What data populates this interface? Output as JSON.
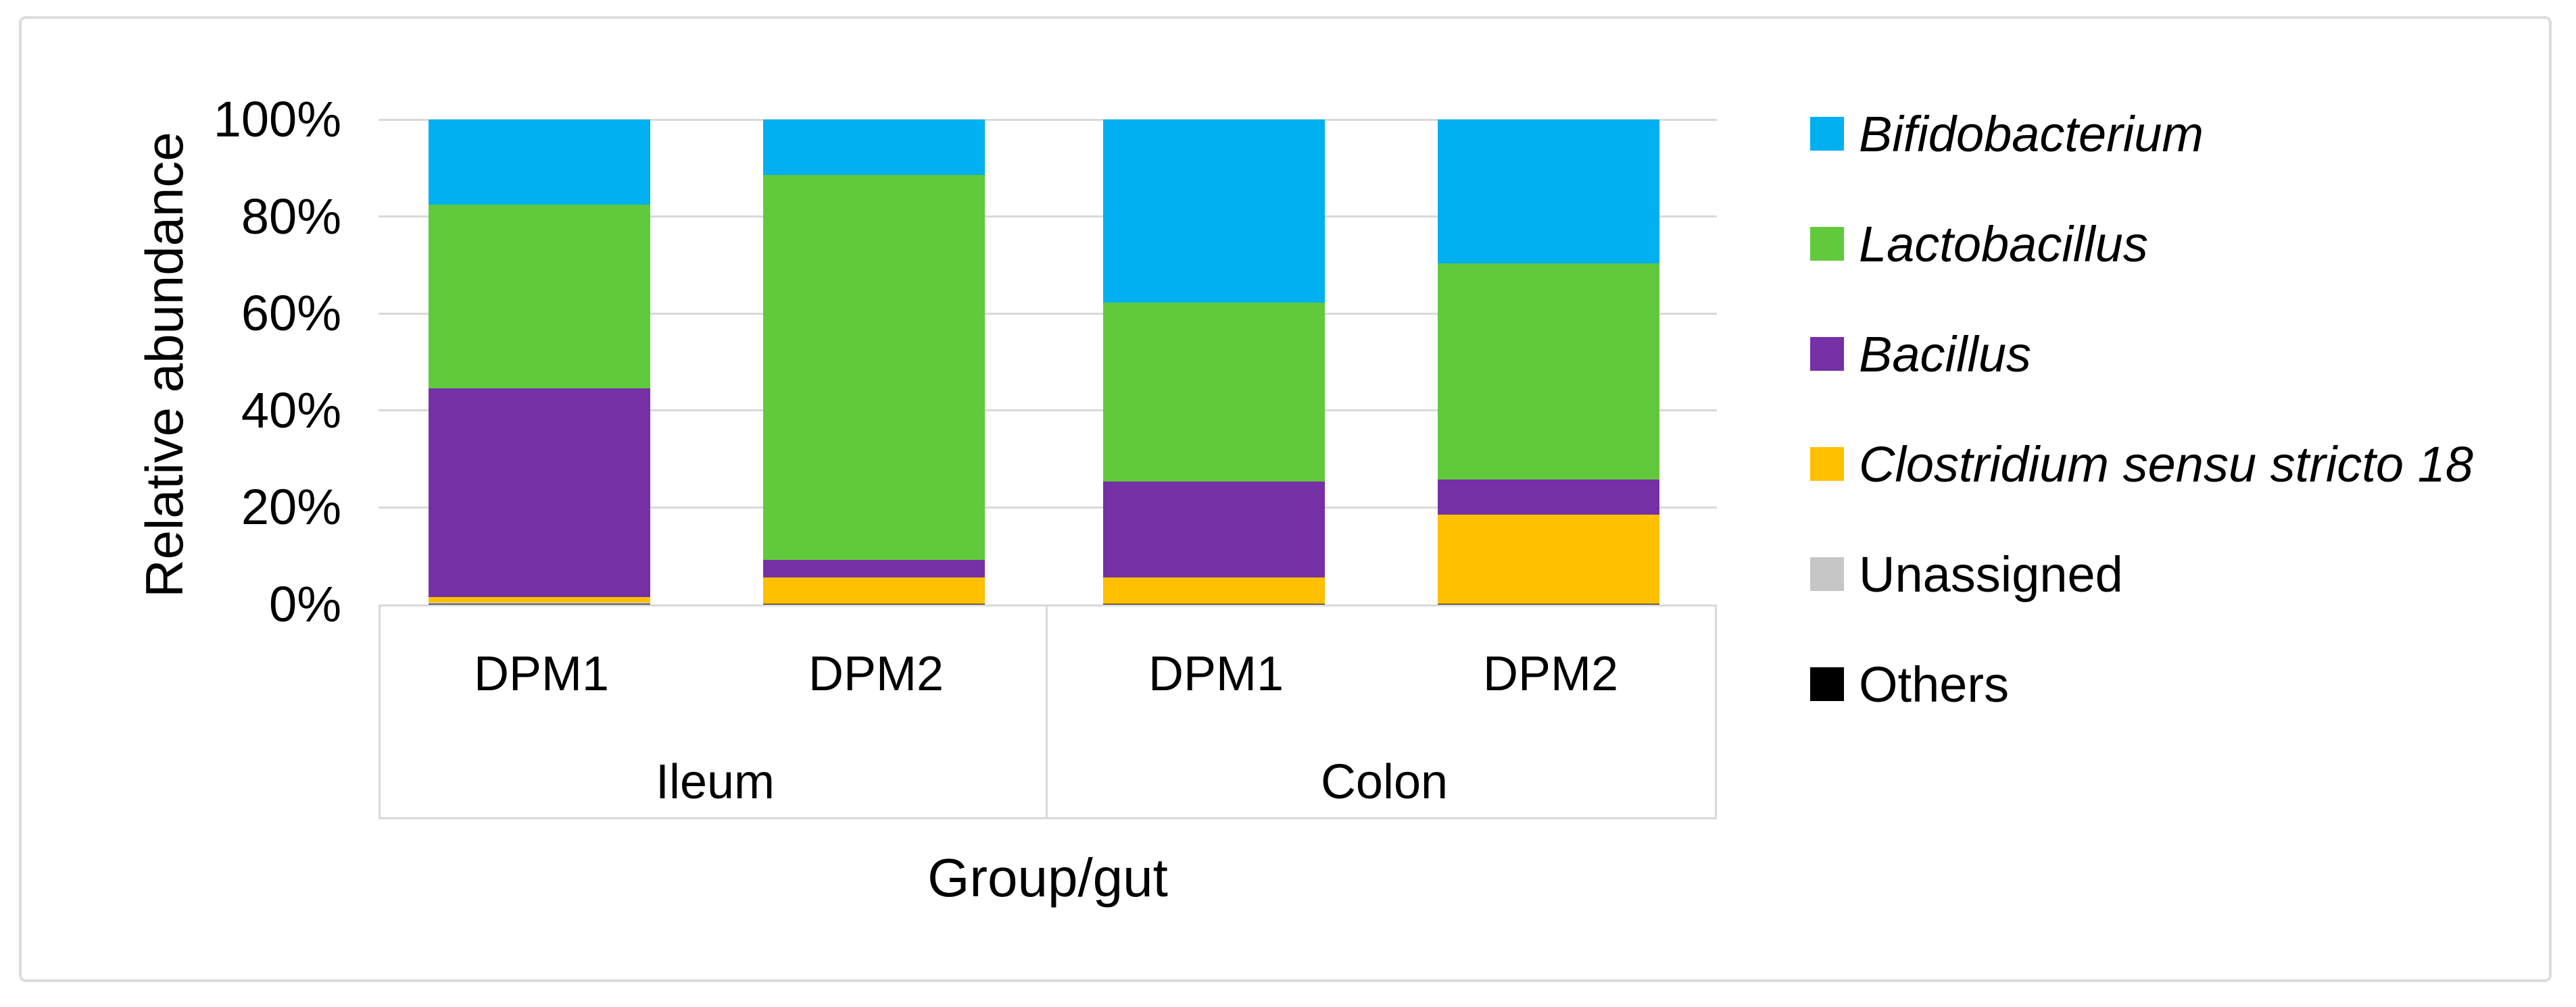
{
  "figure": {
    "y_axis": {
      "title": "Relative abundance",
      "tick_labels": [
        "100%",
        "80%",
        "60%",
        "40%",
        "20%",
        "0%"
      ],
      "tick_values": [
        100,
        80,
        60,
        40,
        20,
        0
      ]
    },
    "x_axis": {
      "title": "Group/gut",
      "bar_labels": [
        "DPM1",
        "DPM2",
        "DPM1",
        "DPM2"
      ],
      "group_labels": [
        "Ileum",
        "Colon"
      ]
    },
    "colors": {
      "gridline": "#d9d9d9",
      "axis_box_border": "#d9d9d9",
      "figure_border": "#dcdcdc",
      "text": "#000000",
      "background": "#ffffff"
    }
  },
  "chart_data": {
    "type": "bar",
    "subtype": "stacked-100-percent",
    "title": "",
    "xlabel": "Group/gut",
    "ylabel": "Relative abundance",
    "ylim": [
      0,
      100
    ],
    "y_ticks_percent": [
      0,
      20,
      40,
      60,
      80,
      100
    ],
    "grid": true,
    "legend_position": "right",
    "groups": [
      {
        "label": "Ileum",
        "bars": [
          "DPM1",
          "DPM2"
        ]
      },
      {
        "label": "Colon",
        "bars": [
          "DPM1",
          "DPM2"
        ]
      }
    ],
    "categories": [
      "Ileum DPM1",
      "Ileum DPM2",
      "Colon DPM1",
      "Colon DPM2"
    ],
    "stack_order_top_to_bottom": [
      "Bifidobacterium",
      "Lactobacillus",
      "Bacillus",
      "Clostridium sensu stricto 18",
      "Unassigned",
      "Others"
    ],
    "series": [
      {
        "name": "Bifidobacterium",
        "italic": true,
        "color": "#00b0f0",
        "values": [
          17.5,
          11.4,
          37.7,
          29.7
        ]
      },
      {
        "name": "Lactobacillus",
        "italic": true,
        "color": "#61c93c",
        "values": [
          38.0,
          79.4,
          37.0,
          44.5
        ]
      },
      {
        "name": "Bacillus",
        "italic": true,
        "color": "#7630a6",
        "values": [
          43.0,
          3.7,
          19.8,
          7.3
        ]
      },
      {
        "name": "Clostridium sensu stricto 18",
        "italic": true,
        "color": "#ffc000",
        "values": [
          1.1,
          5.3,
          5.3,
          18.3
        ]
      },
      {
        "name": "Unassigned",
        "italic": false,
        "color": "#c6c6c6",
        "values": [
          0.2,
          0.1,
          0.1,
          0.1
        ]
      },
      {
        "name": "Others",
        "italic": false,
        "color": "#000000",
        "values": [
          0.2,
          0.1,
          0.1,
          0.1
        ]
      }
    ]
  }
}
